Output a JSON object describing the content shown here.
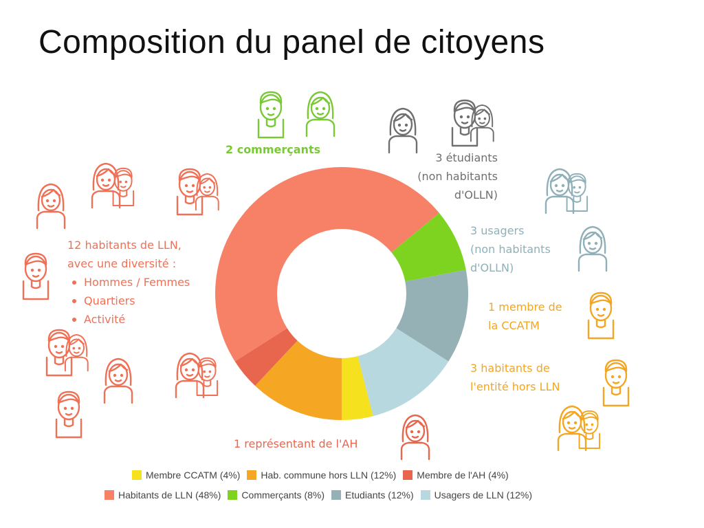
{
  "title": "Composition du panel de citoyens",
  "labels": {
    "commercants": "2 commerçants",
    "etudiants": [
      "3 étudiants",
      "(non habitants",
      "d'OLLN)"
    ],
    "usagers": [
      "3 usagers",
      "(non habitants",
      "d'OLLN)"
    ],
    "ccatm": [
      "1 membre de",
      "la CCATM"
    ],
    "hors_lln": [
      "3 habitants de",
      "l'entité hors LLN"
    ],
    "ah": "1 représentant de l'AH",
    "habitants": [
      "12 habitants de LLN,",
      "avec une diversité :"
    ],
    "diversite": [
      "Hommes / Femmes",
      "Quartiers",
      "Activité"
    ]
  },
  "colors": {
    "ccatm": "#f5e11e",
    "hors_lln": "#f5a623",
    "ah": "#e9664e",
    "habitants": "#f78166",
    "commercants": "#7ed321",
    "etudiants": "#95b1b6",
    "usagers": "#b7d8de",
    "habitants_text": "#f07055",
    "commercants_text": "#79c935",
    "etudiants_text": "#6f6f6f",
    "usagers_text": "#8fb0b8",
    "ccatm_text": "#f2a623",
    "hors_lln_text": "#f2a623",
    "ah_text": "#e9664e"
  },
  "legend": {
    "row1": [
      {
        "key": "ccatm",
        "label": "Membre CCATM (4%)"
      },
      {
        "key": "hors_lln",
        "label": "Hab. commune hors LLN (12%)"
      },
      {
        "key": "ah",
        "label": "Membre de l'AH (4%)"
      }
    ],
    "row2": [
      {
        "key": "habitants",
        "label": "Habitants de LLN (48%)"
      },
      {
        "key": "commercants",
        "label": "Commerçants (8%)"
      },
      {
        "key": "etudiants",
        "label": "Etudiants (12%)"
      },
      {
        "key": "usagers",
        "label": "Usagers de LLN (12%)"
      }
    ]
  },
  "chart_data": {
    "type": "pie",
    "variant": "donut",
    "title": "Composition du panel de citoyens",
    "categories": [
      "Membre CCATM",
      "Hab. commune hors LLN",
      "Membre de l'AH",
      "Habitants de LLN",
      "Commerçants",
      "Etudiants",
      "Usagers de LLN"
    ],
    "values": [
      4,
      12,
      4,
      48,
      8,
      12,
      12
    ],
    "unit": "%",
    "legend_placement": "bottom"
  },
  "icons": [
    {
      "name": "person-icon",
      "group": "commercants",
      "type": "man"
    },
    {
      "name": "person-icon",
      "group": "commercants",
      "type": "woman"
    },
    {
      "name": "person-icon",
      "group": "etudiants",
      "type": "woman"
    },
    {
      "name": "person-icon",
      "group": "etudiants",
      "type": "pair"
    },
    {
      "name": "person-icon",
      "group": "usagers",
      "type": "pair-w"
    },
    {
      "name": "person-icon",
      "group": "usagers",
      "type": "woman"
    },
    {
      "name": "person-icon",
      "group": "ccatm",
      "type": "man"
    },
    {
      "name": "person-icon",
      "group": "hors_lln",
      "type": "man"
    },
    {
      "name": "person-icon",
      "group": "hors_lln",
      "type": "pair-w"
    },
    {
      "name": "person-icon",
      "group": "ah",
      "type": "woman"
    },
    {
      "name": "person-icon",
      "group": "habitants",
      "type": "woman"
    },
    {
      "name": "person-icon",
      "group": "habitants",
      "type": "pair-w"
    },
    {
      "name": "person-icon",
      "group": "habitants",
      "type": "pair"
    },
    {
      "name": "person-icon",
      "group": "habitants",
      "type": "man"
    },
    {
      "name": "person-icon",
      "group": "habitants",
      "type": "pair"
    },
    {
      "name": "person-icon",
      "group": "habitants",
      "type": "man"
    },
    {
      "name": "person-icon",
      "group": "habitants",
      "type": "woman"
    },
    {
      "name": "person-icon",
      "group": "habitants",
      "type": "pair-w"
    }
  ]
}
